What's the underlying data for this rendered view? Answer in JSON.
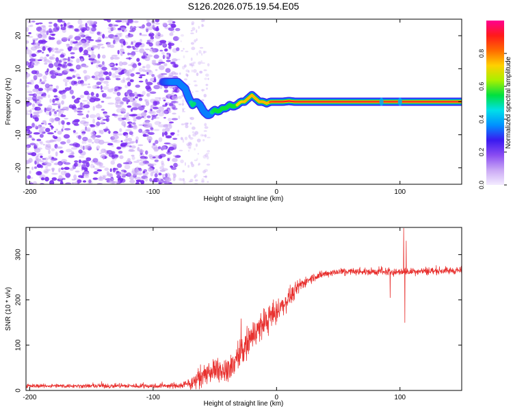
{
  "title": "S126.2026.075.19.54.E05",
  "colors": {
    "snr_line": "#e8302e",
    "background": "#ffffff",
    "axis": "#000000",
    "noise_purple": "#7a2cf0",
    "noise_lavender": "#c9a8f5"
  },
  "chart_data": [
    {
      "type": "heatmap",
      "name": "spectrogram",
      "xlabel": "Height of straight line (km)",
      "ylabel": "Frequency (Hz)",
      "xlim": [
        -203,
        150
      ],
      "ylim": [
        -25,
        25
      ],
      "xticks": [
        -200,
        -100,
        0,
        100
      ],
      "yticks": [
        -20,
        -10,
        0,
        10,
        20
      ],
      "colorbar": {
        "label": "Normalized spectral amplitude",
        "range": [
          0,
          1
        ],
        "ticks": [
          "0.0",
          "0.2",
          "0.4",
          "0.6",
          "0.8"
        ],
        "tick_values": [
          0.0,
          0.2,
          0.4,
          0.6,
          0.8
        ],
        "colormap": [
          "#f4ecff",
          "#c9a8f5",
          "#8a4cf2",
          "#3a1af0",
          "#0090ff",
          "#00e0e8",
          "#00e040",
          "#a8f000",
          "#ffd000",
          "#ff6a00",
          "#ff1a1a",
          "#ff0090"
        ]
      },
      "noise_region_x": [
        -203,
        -80
      ],
      "noise_fringe_x": [
        -80,
        -55
      ],
      "ridge": {
        "x": [
          -92,
          -85,
          -80,
          -77,
          -74,
          -71,
          -68,
          -65,
          -62,
          -59,
          -56,
          -54,
          -52,
          -50,
          -47,
          -44,
          -41,
          -38,
          -35,
          -32,
          -29,
          -26,
          -23,
          -20,
          -17,
          -14,
          -11,
          -8,
          -5,
          -2,
          0,
          5,
          10,
          15,
          20,
          25,
          30,
          40,
          60,
          85,
          100,
          120,
          150
        ],
        "hz": [
          6,
          6,
          6,
          5,
          4,
          1,
          -1,
          0,
          -1,
          -3,
          -4,
          -4,
          -3,
          -2.5,
          -3,
          -2,
          -2,
          -1,
          -1.5,
          -1,
          0,
          0,
          1,
          2,
          1,
          0,
          0,
          -0.5,
          0,
          0,
          0,
          0,
          0.2,
          0,
          0,
          0,
          0,
          0,
          0,
          0,
          0,
          0,
          0
        ],
        "amp": [
          0.3,
          0.35,
          0.4,
          0.45,
          0.42,
          0.48,
          0.52,
          0.45,
          0.5,
          0.48,
          0.45,
          0.48,
          0.52,
          0.55,
          0.58,
          0.6,
          0.62,
          0.66,
          0.68,
          0.7,
          0.72,
          0.74,
          0.76,
          0.78,
          0.8,
          0.82,
          0.84,
          0.86,
          0.88,
          0.9,
          0.92,
          0.94,
          0.95,
          0.96,
          0.96,
          0.97,
          0.97,
          0.98,
          0.98,
          0.97,
          0.98,
          0.98,
          0.98
        ]
      }
    },
    {
      "type": "line",
      "name": "snr",
      "xlabel": "Height of straight line (km)",
      "ylabel": "SNR (10 * v/v)",
      "xlim": [
        -203,
        150
      ],
      "ylim": [
        0,
        360
      ],
      "xticks": [
        -200,
        -100,
        0,
        100
      ],
      "yticks": [
        0,
        100,
        200,
        300
      ],
      "trend": {
        "x": [
          -203,
          -80,
          -70,
          -60,
          -50,
          -40,
          -30,
          -20,
          -10,
          0,
          10,
          20,
          30,
          40,
          50,
          100,
          150
        ],
        "y": [
          10,
          10,
          15,
          30,
          45,
          40,
          80,
          120,
          150,
          170,
          205,
          235,
          250,
          258,
          262,
          262,
          265
        ]
      },
      "noise_amplitude": {
        "x": [
          -203,
          -80,
          -65,
          -50,
          -35,
          -20,
          -5,
          10,
          25,
          40,
          150
        ],
        "y": [
          6,
          8,
          25,
          35,
          45,
          50,
          45,
          30,
          15,
          12,
          12
        ]
      },
      "spikes": [
        {
          "x": 92,
          "y": 205
        },
        {
          "x": 103,
          "y": 358
        },
        {
          "x": 104,
          "y": 150
        },
        {
          "x": 105,
          "y": 330
        }
      ]
    }
  ]
}
